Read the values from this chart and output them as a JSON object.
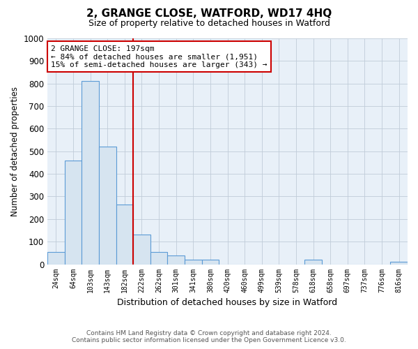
{
  "title": "2, GRANGE CLOSE, WATFORD, WD17 4HQ",
  "subtitle": "Size of property relative to detached houses in Watford",
  "xlabel": "Distribution of detached houses by size in Watford",
  "ylabel": "Number of detached properties",
  "bin_labels": [
    "24sqm",
    "64sqm",
    "103sqm",
    "143sqm",
    "182sqm",
    "222sqm",
    "262sqm",
    "301sqm",
    "341sqm",
    "380sqm",
    "420sqm",
    "460sqm",
    "499sqm",
    "539sqm",
    "578sqm",
    "618sqm",
    "658sqm",
    "697sqm",
    "737sqm",
    "776sqm",
    "816sqm"
  ],
  "bar_heights": [
    55,
    460,
    810,
    520,
    265,
    130,
    55,
    40,
    20,
    20,
    0,
    0,
    0,
    0,
    0,
    20,
    0,
    0,
    0,
    0,
    10
  ],
  "bar_color": "#d6e4f0",
  "bar_edge_color": "#5b9bd5",
  "vline_x_index": 5,
  "vline_color": "#cc0000",
  "annotation_line1": "2 GRANGE CLOSE: 197sqm",
  "annotation_line2": "← 84% of detached houses are smaller (1,951)",
  "annotation_line3": "15% of semi-detached houses are larger (343) →",
  "annotation_box_color": "#ffffff",
  "annotation_box_edge_color": "#cc0000",
  "ylim": [
    0,
    1000
  ],
  "yticks": [
    0,
    100,
    200,
    300,
    400,
    500,
    600,
    700,
    800,
    900,
    1000
  ],
  "footer_line1": "Contains HM Land Registry data © Crown copyright and database right 2024.",
  "footer_line2": "Contains public sector information licensed under the Open Government Licence v3.0.",
  "bg_color": "#ffffff",
  "plot_bg_color": "#e8f0f8",
  "grid_color": "#c0ccd8"
}
